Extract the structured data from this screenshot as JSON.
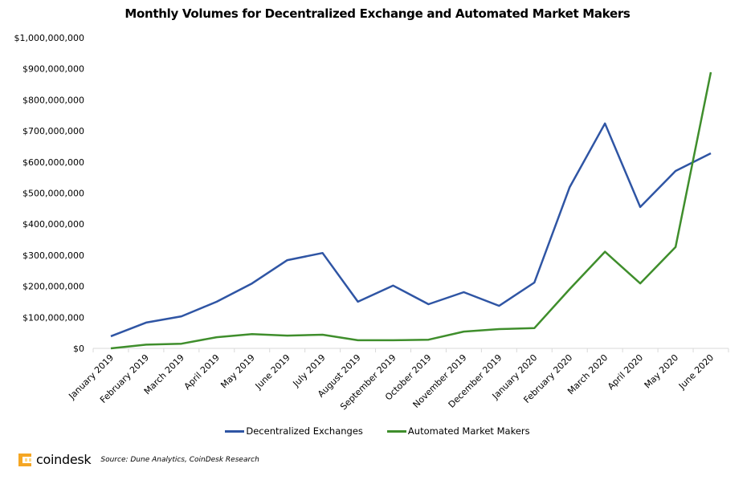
{
  "logo": {
    "text": "coindesk",
    "accent": "#F5A623"
  },
  "source": "Source: Dune Analytics, CoinDesk Research",
  "chart_data": {
    "type": "line",
    "title": "Monthly Volumes for Decentralized Exchange and Automated Market Makers",
    "xlabel": "",
    "ylabel": "",
    "ylim": [
      0,
      1000000000
    ],
    "grid": false,
    "legend_position": "bottom",
    "y_tick_values": [
      0,
      100000000,
      200000000,
      300000000,
      400000000,
      500000000,
      600000000,
      700000000,
      800000000,
      900000000,
      1000000000
    ],
    "y_tick_labels": [
      "$0",
      "$100,000,000",
      "$200,000,000",
      "$300,000,000",
      "$400,000,000",
      "$500,000,000",
      "$600,000,000",
      "$700,000,000",
      "$800,000,000",
      "$900,000,000",
      "$1,000,000,000"
    ],
    "categories": [
      "January 2019",
      "February 2019",
      "March 2019",
      "April 2019",
      "May 2019",
      "June 2019",
      "July 2019",
      "August 2019",
      "September 2019",
      "October 2019",
      "November 2019",
      "December 2019",
      "January 2020",
      "February 2020",
      "March 2020",
      "April 2020",
      "May 2020",
      "June 2020"
    ],
    "series": [
      {
        "name": "Decentralized Exchanges",
        "color": "#2F55A4",
        "values": [
          39000000,
          83000000,
          103000000,
          150000000,
          209000000,
          284000000,
          307000000,
          150000000,
          202000000,
          142000000,
          181000000,
          137000000,
          212000000,
          519000000,
          724000000,
          455000000,
          571000000,
          628000000
        ]
      },
      {
        "name": "Automated Market Makers",
        "color": "#3F8E2C",
        "values": [
          0,
          12000000,
          15000000,
          36000000,
          46000000,
          41000000,
          44000000,
          26000000,
          26000000,
          28000000,
          54000000,
          62000000,
          65000000,
          191000000,
          311000000,
          209000000,
          326000000,
          889000000
        ]
      }
    ]
  }
}
